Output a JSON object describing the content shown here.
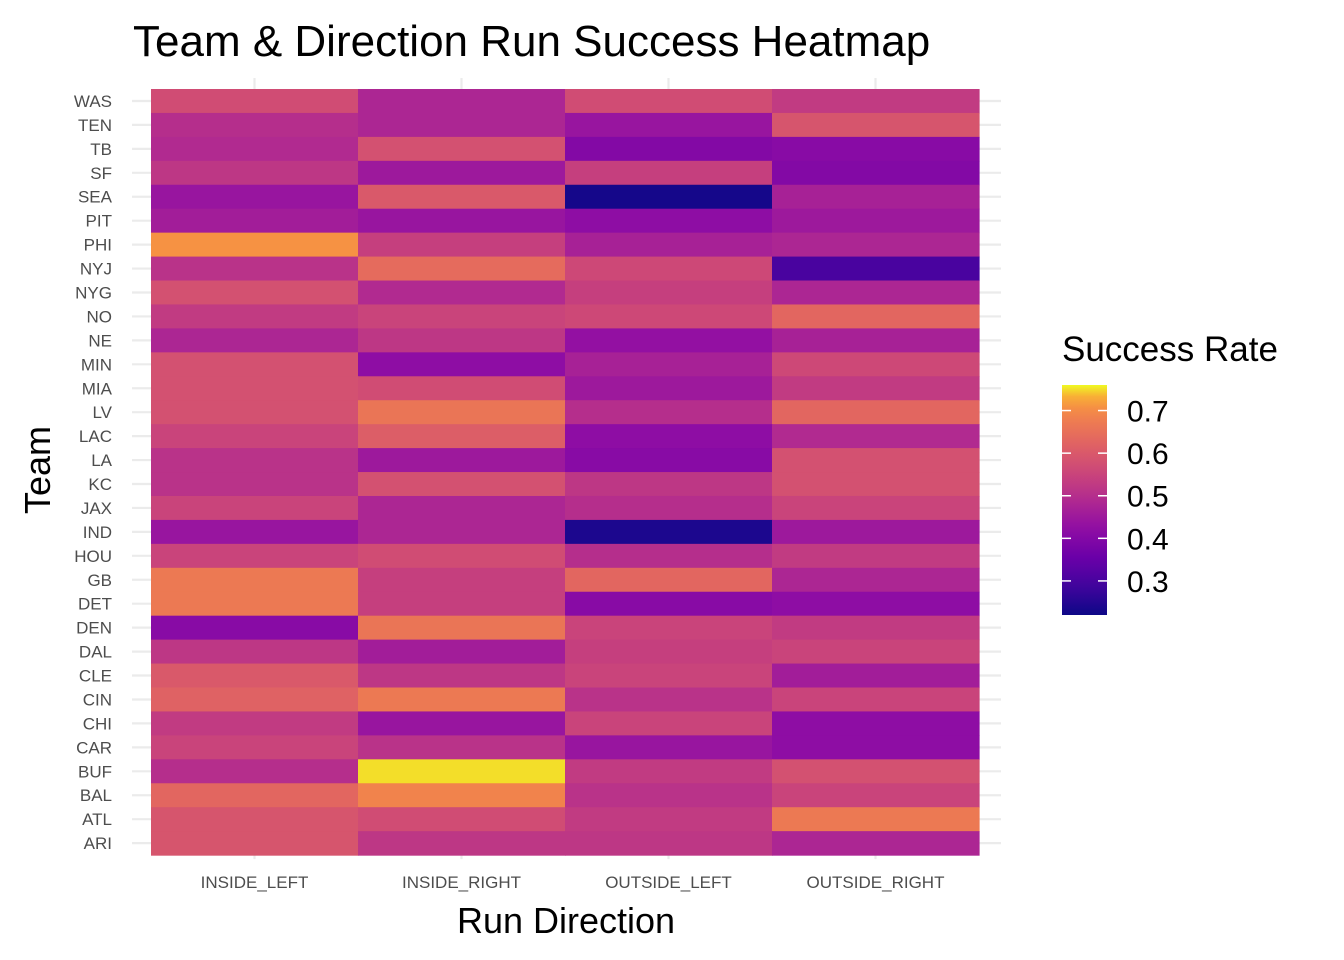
{
  "chart_data": {
    "type": "heatmap",
    "title": "Team & Direction Run Success Heatmap",
    "xlabel": "Run Direction",
    "ylabel": "Team",
    "x_categories": [
      "INSIDE_LEFT",
      "INSIDE_RIGHT",
      "OUTSIDE_LEFT",
      "OUTSIDE_RIGHT"
    ],
    "y_categories": [
      "WAS",
      "TEN",
      "TB",
      "SF",
      "SEA",
      "PIT",
      "PHI",
      "NYJ",
      "NYG",
      "NO",
      "NE",
      "MIN",
      "MIA",
      "LV",
      "LAC",
      "LA",
      "KC",
      "JAX",
      "IND",
      "HOU",
      "GB",
      "DET",
      "DEN",
      "DAL",
      "CLE",
      "CIN",
      "CHI",
      "CAR",
      "BUF",
      "BAL",
      "ATL",
      "ARI"
    ],
    "values": [
      [
        0.57,
        0.48,
        0.57,
        0.53
      ],
      [
        0.5,
        0.48,
        0.44,
        0.59
      ],
      [
        0.49,
        0.58,
        0.4,
        0.41
      ],
      [
        0.52,
        0.45,
        0.54,
        0.4
      ],
      [
        0.44,
        0.6,
        0.23,
        0.47
      ],
      [
        0.46,
        0.44,
        0.42,
        0.45
      ],
      [
        0.71,
        0.54,
        0.47,
        0.48
      ],
      [
        0.51,
        0.64,
        0.56,
        0.3
      ],
      [
        0.58,
        0.49,
        0.54,
        0.48
      ],
      [
        0.53,
        0.55,
        0.56,
        0.63
      ],
      [
        0.48,
        0.52,
        0.43,
        0.47
      ],
      [
        0.58,
        0.42,
        0.47,
        0.56
      ],
      [
        0.58,
        0.57,
        0.45,
        0.53
      ],
      [
        0.58,
        0.66,
        0.5,
        0.63
      ],
      [
        0.55,
        0.61,
        0.42,
        0.49
      ],
      [
        0.51,
        0.45,
        0.41,
        0.58
      ],
      [
        0.51,
        0.58,
        0.52,
        0.58
      ],
      [
        0.55,
        0.48,
        0.5,
        0.55
      ],
      [
        0.44,
        0.48,
        0.24,
        0.45
      ],
      [
        0.55,
        0.57,
        0.5,
        0.53
      ],
      [
        0.67,
        0.54,
        0.63,
        0.48
      ],
      [
        0.67,
        0.54,
        0.41,
        0.42
      ],
      [
        0.41,
        0.66,
        0.55,
        0.53
      ],
      [
        0.52,
        0.46,
        0.54,
        0.55
      ],
      [
        0.6,
        0.52,
        0.55,
        0.46
      ],
      [
        0.62,
        0.67,
        0.51,
        0.55
      ],
      [
        0.53,
        0.44,
        0.55,
        0.42
      ],
      [
        0.55,
        0.51,
        0.44,
        0.42
      ],
      [
        0.5,
        0.75,
        0.53,
        0.58
      ],
      [
        0.63,
        0.69,
        0.51,
        0.55
      ],
      [
        0.59,
        0.57,
        0.53,
        0.67
      ],
      [
        0.59,
        0.52,
        0.52,
        0.48
      ]
    ],
    "legend": {
      "title": "Success Rate",
      "ticks": [
        "0.3",
        "0.4",
        "0.5",
        "0.6",
        "0.7"
      ],
      "tick_values": [
        0.3,
        0.4,
        0.5,
        0.6,
        0.7
      ],
      "range": [
        0.22,
        0.76
      ],
      "position": "right"
    },
    "colormap": "plasma",
    "grid": true
  }
}
